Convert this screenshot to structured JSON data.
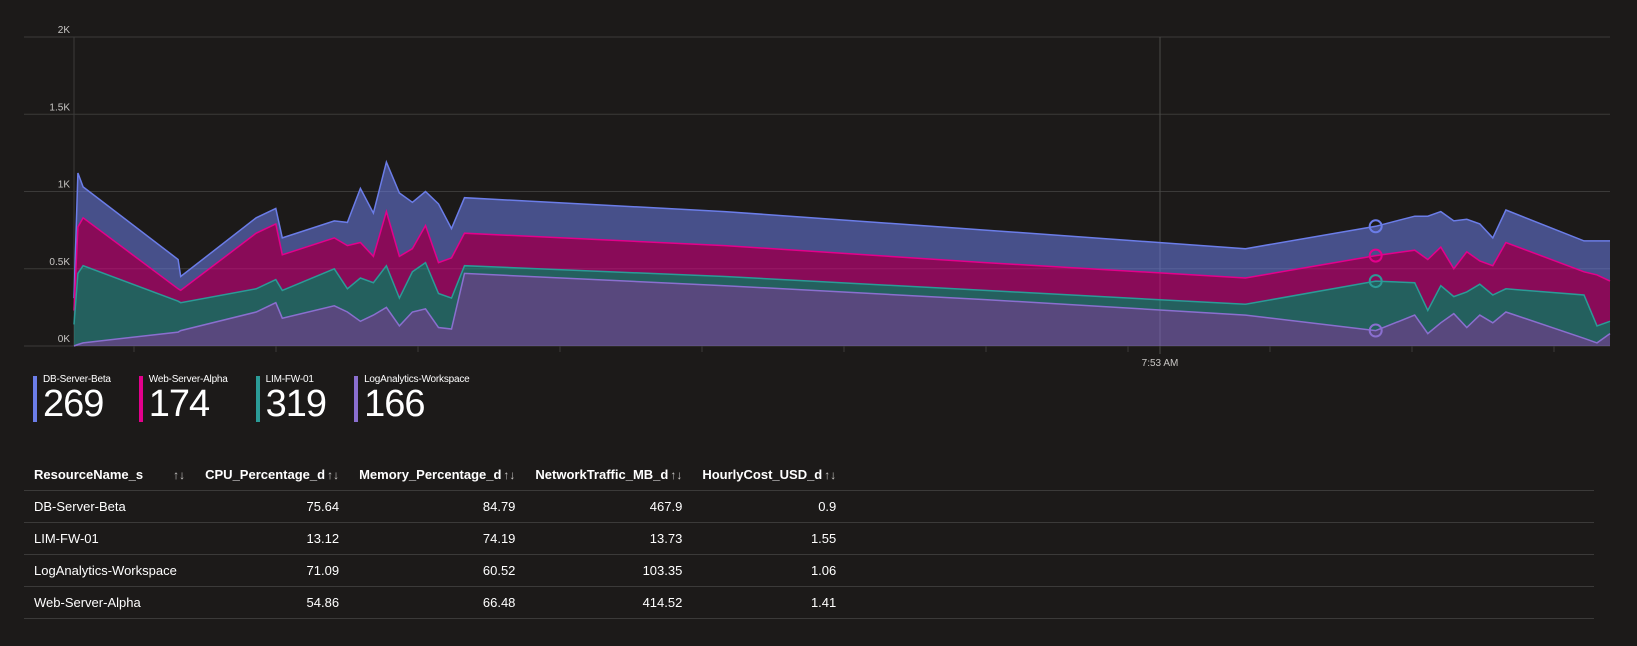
{
  "chart_data": {
    "type": "area",
    "stacked": true,
    "x_tick_label": "7:53 AM",
    "y_ticks": [
      "0K",
      "0.5K",
      "1K",
      "1.5K",
      "2K"
    ],
    "ylim": [
      0,
      2000
    ],
    "grid": true,
    "legend_position": "bottom-left",
    "x": [
      0,
      3,
      7,
      80,
      82,
      140,
      155,
      160,
      200,
      210,
      220,
      230,
      240,
      250,
      260,
      270,
      280,
      290,
      300,
      500,
      700,
      900,
      1000,
      1030,
      1040,
      1050,
      1060,
      1070,
      1080,
      1090,
      1100,
      1160,
      1170,
      1180
    ],
    "series": [
      {
        "name": "DB-Server-Beta",
        "color": "#6b7de8",
        "values": [
          80,
          350,
          200,
          190,
          90,
          100,
          100,
          110,
          110,
          150,
          350,
          280,
          320,
          410,
          300,
          220,
          380,
          190,
          230,
          220,
          210,
          190,
          190,
          220,
          280,
          230,
          310,
          210,
          240,
          180,
          210,
          200,
          220,
          260
        ]
      },
      {
        "name": "Web-Server-Alpha",
        "color": "#e3008c",
        "values": [
          90,
          300,
          310,
          80,
          80,
          360,
          360,
          230,
          200,
          280,
          230,
          170,
          350,
          270,
          150,
          240,
          200,
          260,
          210,
          200,
          180,
          170,
          165,
          210,
          330,
          250,
          180,
          260,
          150,
          190,
          300,
          150,
          330,
          260
        ]
      },
      {
        "name": "LIM-FW-01",
        "color": "#2b9b97",
        "values": [
          140,
          460,
          500,
          200,
          180,
          150,
          150,
          180,
          240,
          150,
          280,
          210,
          270,
          180,
          260,
          300,
          220,
          200,
          50,
          60,
          60,
          70,
          320,
          210,
          150,
          240,
          110,
          230,
          200,
          180,
          150,
          280,
          110,
          80
        ]
      },
      {
        "name": "LogAnalytics-Workspace",
        "color": "#8a6fcf",
        "values": [
          0,
          10,
          20,
          90,
          100,
          220,
          280,
          180,
          260,
          220,
          160,
          200,
          250,
          130,
          220,
          240,
          120,
          110,
          470,
          390,
          300,
          200,
          100,
          200,
          80,
          150,
          210,
          120,
          200,
          150,
          220,
          50,
          20,
          80
        ]
      }
    ]
  },
  "legend": [
    {
      "name": "DB-Server-Beta",
      "value": "269",
      "color": "#6b7de8"
    },
    {
      "name": "Web-Server-Alpha",
      "value": "174",
      "color": "#e3008c"
    },
    {
      "name": "LIM-FW-01",
      "value": "319",
      "color": "#2b9b97"
    },
    {
      "name": "LogAnalytics-Workspace",
      "value": "166",
      "color": "#8a6fcf"
    }
  ],
  "table": {
    "headers": [
      "ResourceName_s",
      "CPU_Percentage_d",
      "Memory_Percentage_d",
      "NetworkTraffic_MB_d",
      "HourlyCost_USD_d"
    ],
    "sort_glyph": "↑↓",
    "rows": [
      [
        "DB-Server-Beta",
        "75.64",
        "84.79",
        "467.9",
        "0.9"
      ],
      [
        "LIM-FW-01",
        "13.12",
        "74.19",
        "13.73",
        "1.55"
      ],
      [
        "LogAnalytics-Workspace",
        "71.09",
        "60.52",
        "103.35",
        "1.06"
      ],
      [
        "Web-Server-Alpha",
        "54.86",
        "66.48",
        "414.52",
        "1.41"
      ]
    ]
  }
}
